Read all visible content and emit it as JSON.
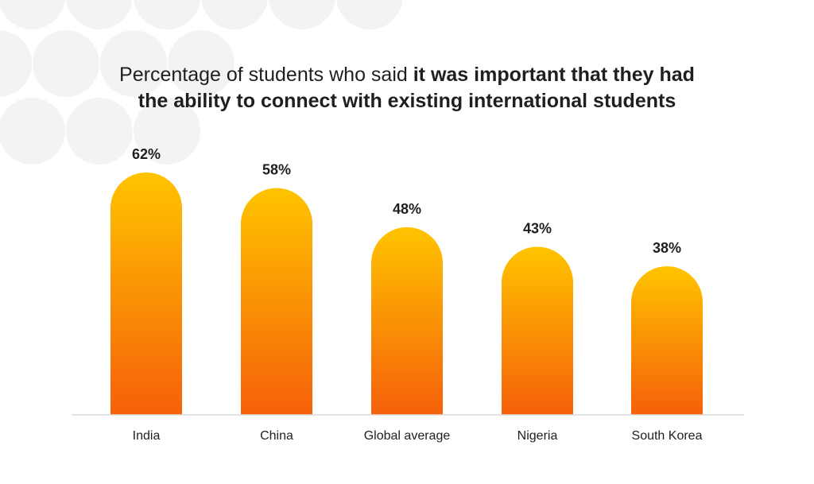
{
  "title": {
    "line1_regular": "Percentage of students who said ",
    "line1_bold": "it was important that they had",
    "line2_bold": "the ability to connect with existing international students"
  },
  "colors": {
    "bar_top": "#ffc400",
    "bar_bottom": "#f5600a",
    "axis": "#d9d9d9",
    "text": "#1f1f1f",
    "background_circles": "#f3f3f3"
  },
  "chart_data": {
    "type": "bar",
    "categories": [
      "India",
      "China",
      "Global average",
      "Nigeria",
      "South Korea"
    ],
    "values": [
      62,
      58,
      48,
      43,
      38
    ],
    "value_labels": [
      "62%",
      "58%",
      "48%",
      "43%",
      "38%"
    ],
    "title": "Percentage of students who said it was important that they had the ability to connect with existing international students",
    "xlabel": "",
    "ylabel": "",
    "ylim": [
      0,
      62
    ],
    "grid": false,
    "legend": "none"
  }
}
